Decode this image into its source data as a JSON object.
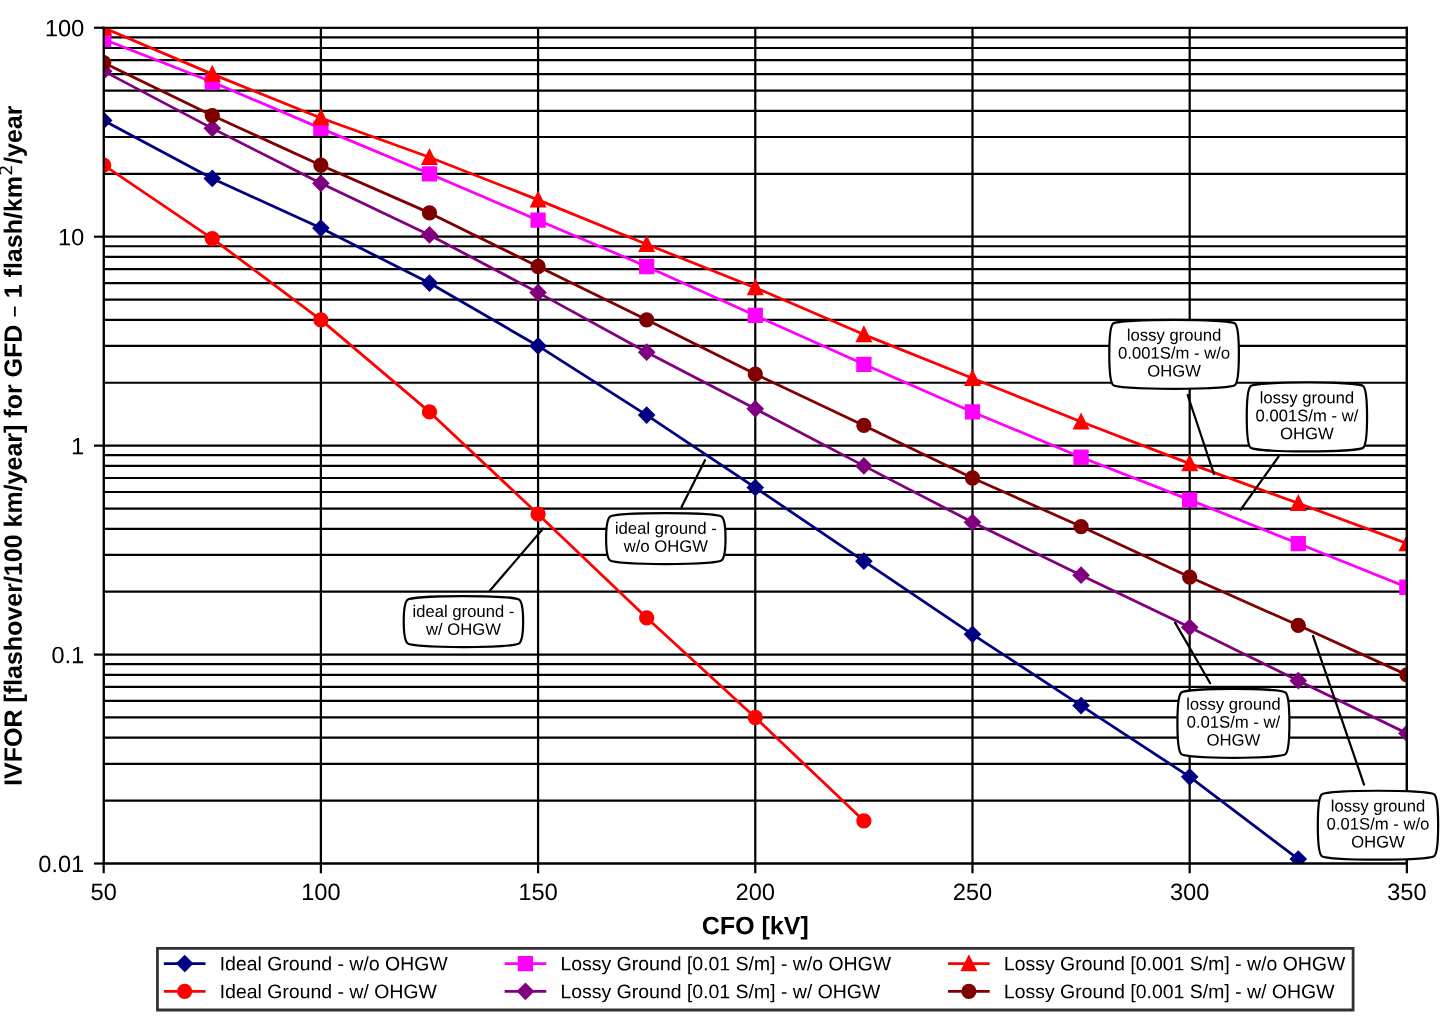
{
  "chart_data": {
    "type": "line",
    "xlabel": "CFO [kV]",
    "ylabel": "IVFOR [flashover/100 km/year] for GFD – 1 flash/km$^{2}$/year",
    "x": [
      50,
      75,
      100,
      125,
      150,
      175,
      200,
      225,
      250,
      275,
      300,
      325,
      350
    ],
    "series": [
      {
        "name": "Ideal Ground - w/o OHGW",
        "color": "#000080",
        "marker": "diamond",
        "values": [
          36,
          19,
          11,
          6,
          3,
          1.4,
          0.63,
          0.28,
          0.125,
          0.057,
          0.026,
          0.0105,
          null
        ]
      },
      {
        "name": "Ideal Ground - w/ OHGW",
        "color": "#ff0000",
        "marker": "circle",
        "values": [
          22,
          9.8,
          4,
          1.45,
          0.47,
          0.15,
          0.05,
          0.016,
          null,
          null,
          null,
          null,
          null
        ]
      },
      {
        "name": "Lossy Ground [0.01 S/m] - w/o OHGW",
        "color": "#ff00ff",
        "marker": "square",
        "values": [
          88,
          55,
          33,
          20,
          12,
          7.2,
          4.2,
          2.45,
          1.45,
          0.88,
          0.55,
          0.34,
          0.21
        ]
      },
      {
        "name": "Lossy Ground [0.01 S/m] - w/ OHGW",
        "color": "#800080",
        "marker": "diamond",
        "values": [
          62,
          33,
          18,
          10.2,
          5.4,
          2.8,
          1.5,
          0.8,
          0.43,
          0.24,
          0.135,
          0.075,
          0.042
        ]
      },
      {
        "name": "Lossy Ground [0.001 S/m] - w/o OHGW",
        "color": "#ff0000",
        "marker": "triangle",
        "values": [
          100,
          60,
          37,
          24,
          15,
          9.2,
          5.7,
          3.4,
          2.1,
          1.3,
          0.82,
          0.53,
          0.34
        ]
      },
      {
        "name": "Lossy Ground [0.001 S/m] - w/ OHGW",
        "color": "#800000",
        "marker": "circle",
        "values": [
          68,
          38,
          22,
          13,
          7.2,
          4,
          2.2,
          1.25,
          0.7,
          0.41,
          0.235,
          0.138,
          0.08
        ]
      }
    ],
    "xlim": [
      50,
      350
    ],
    "xticks": [
      50,
      100,
      150,
      200,
      250,
      300,
      350
    ],
    "ylim": [
      0.01,
      100
    ],
    "yticks": [
      0.01,
      0.1,
      1,
      10,
      100
    ],
    "log": true,
    "grid": true,
    "legend": "bottom",
    "line_style": "solid",
    "annotations": [
      {
        "text": "ideal ground - w/o OHGW",
        "x": 189,
        "y": 0.9
      },
      {
        "text": "ideal ground - w/ OHGW",
        "x": 152,
        "y": 0.42
      },
      {
        "text": "lossy ground 0.001S/m - w/o OHGW",
        "x": 306,
        "y": 0.69
      },
      {
        "text": "lossy ground 0.001S/m - w/ OHGW",
        "x": 311,
        "y": 0.47
      },
      {
        "text": "lossy ground 0.01S/m - w/ OHGW",
        "x": 296,
        "y": 0.15
      },
      {
        "text": "lossy ground 0.01S/m - w/o OHGW",
        "x": 328,
        "y": 0.13
      }
    ]
  }
}
